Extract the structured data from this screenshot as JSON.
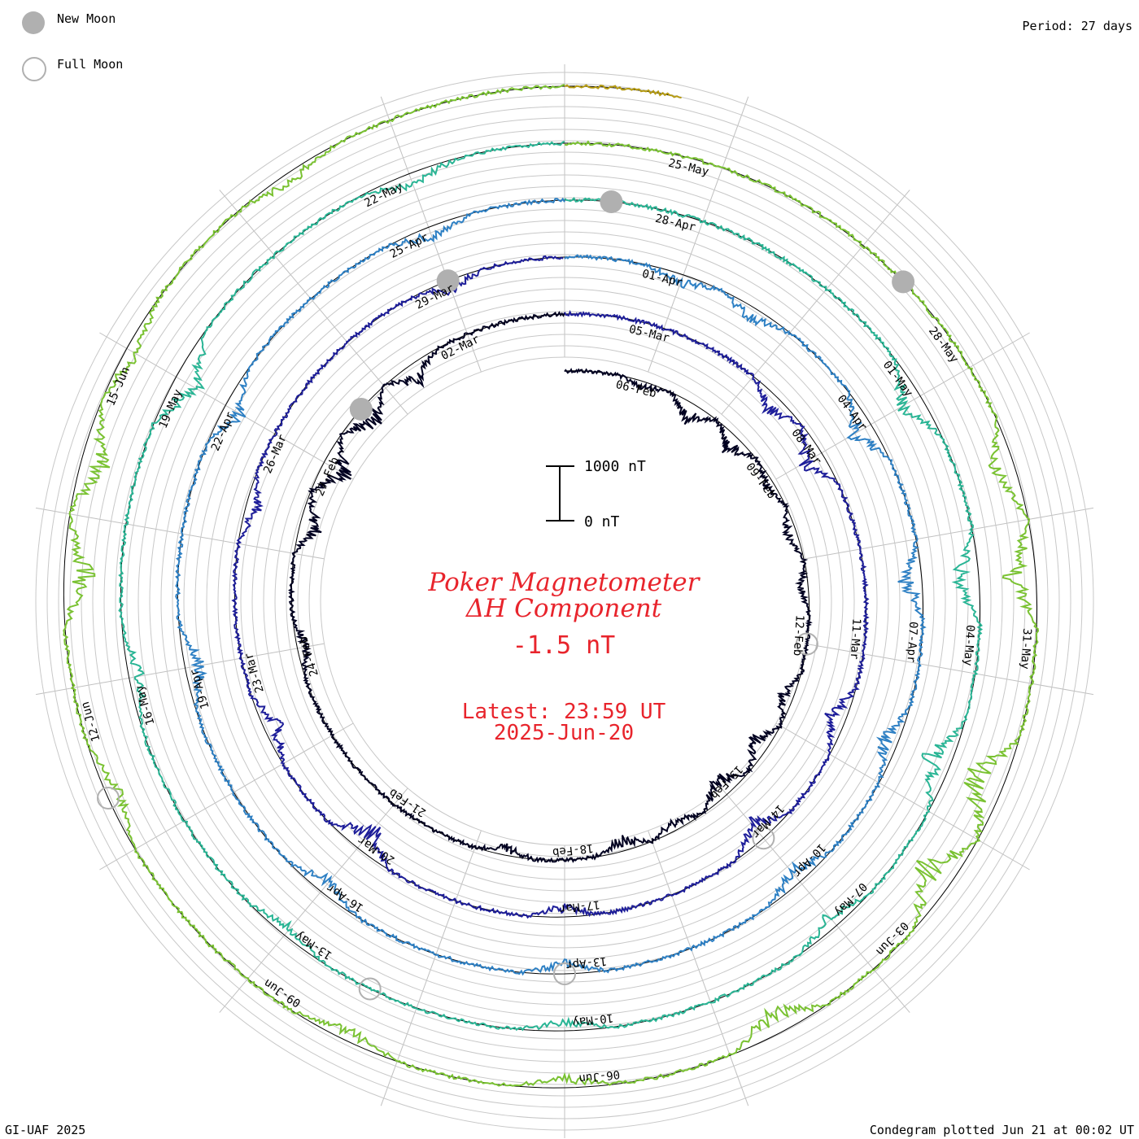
{
  "legend": {
    "new_moon": "New Moon",
    "full_moon": "Full Moon",
    "new_moon_color": "#b0b0b0",
    "full_moon_color": "#b0b0b0"
  },
  "header": {
    "period": "Period: 27 days"
  },
  "footer": {
    "credit": "GI-UAF 2025",
    "plotted": "Condegram plotted Jun 21 at 00:02 UT"
  },
  "center": {
    "title_line1": "Poker Magnetometer",
    "title_line2": "ΔH Component",
    "value": "-1.5 nT",
    "latest": "Latest: 23:59 UT",
    "date": "2025-Jun-20",
    "text_color": "#e8242c"
  },
  "scale_bar": {
    "top_label": "1000 nT",
    "bottom_label": "0 nT",
    "range_nT": [
      0,
      1000
    ]
  },
  "chart_data": {
    "type": "line",
    "layout": "spiral condegram",
    "period_days": 27,
    "start_date": "2025-02-05",
    "end_date": "2025-06-20",
    "quantity": "ΔH (nT)",
    "date_labels": [
      "06-Feb",
      "09-Feb",
      "12-Feb",
      "15-Feb",
      "18-Feb",
      "21-Feb",
      "24-Feb",
      "27-Feb",
      "02-Mar",
      "05-Mar",
      "08-Mar",
      "11-Mar",
      "14-Mar",
      "17-Mar",
      "20-Mar",
      "23-Mar",
      "26-Mar",
      "29-Mar",
      "01-Apr",
      "04-Apr",
      "07-Apr",
      "10-Apr",
      "13-Apr",
      "16-Apr",
      "19-Apr",
      "22-Apr",
      "25-Apr",
      "28-Apr",
      "01-May",
      "04-May",
      "07-May",
      "10-May",
      "13-May",
      "16-May",
      "19-May",
      "22-May",
      "25-May",
      "28-May",
      "31-May",
      "03-Jun",
      "06-Jun",
      "09-Jun",
      "12-Jun",
      "15-Jun"
    ],
    "new_moons": [
      "2025-02-28",
      "2025-03-29",
      "2025-04-27",
      "2025-05-27"
    ],
    "full_moons": [
      "2025-02-12",
      "2025-03-14",
      "2025-04-13",
      "2025-05-12",
      "2025-06-11"
    ],
    "cycle_colors": [
      "#000020",
      "#1e1e9a",
      "#2e80c4",
      "#2ab595",
      "#7ac232",
      "#b59b12",
      "#c43c0c"
    ],
    "disturbances": [
      {
        "date": "2025-02-06",
        "dH": 160
      },
      {
        "date": "2025-02-07",
        "dH": 440
      },
      {
        "date": "2025-02-08",
        "dH": 380
      },
      {
        "date": "2025-02-09",
        "dH": 220
      },
      {
        "date": "2025-02-10",
        "dH": 300
      },
      {
        "date": "2025-02-11",
        "dH": 180
      },
      {
        "date": "2025-02-13",
        "dH": 340
      },
      {
        "date": "2025-02-14",
        "dH": 420
      },
      {
        "date": "2025-02-15",
        "dH": 520
      },
      {
        "date": "2025-02-16",
        "dH": 260
      },
      {
        "date": "2025-02-17",
        "dH": 300
      },
      {
        "date": "2025-02-19",
        "dH": 200
      },
      {
        "date": "2025-02-24",
        "dH": 240
      },
      {
        "date": "2025-02-26",
        "dH": 480
      },
      {
        "date": "2025-02-27",
        "dH": 620
      },
      {
        "date": "2025-02-28",
        "dH": 540
      },
      {
        "date": "2025-03-01",
        "dH": 420
      },
      {
        "date": "2025-03-07",
        "dH": 380
      },
      {
        "date": "2025-03-08",
        "dH": 560
      },
      {
        "date": "2025-03-12",
        "dH": 420
      },
      {
        "date": "2025-03-14",
        "dH": 500
      },
      {
        "date": "2025-03-17",
        "dH": 280
      },
      {
        "date": "2025-03-20",
        "dH": 620
      },
      {
        "date": "2025-03-22",
        "dH": 360
      },
      {
        "date": "2025-03-25",
        "dH": 300
      },
      {
        "date": "2025-03-29",
        "dH": 260
      },
      {
        "date": "2025-04-01",
        "dH": 260
      },
      {
        "date": "2025-04-02",
        "dH": 300
      },
      {
        "date": "2025-04-04",
        "dH": 520
      },
      {
        "date": "2025-04-06",
        "dH": 440
      },
      {
        "date": "2025-04-08",
        "dH": 380
      },
      {
        "date": "2025-04-10",
        "dH": 360
      },
      {
        "date": "2025-04-13",
        "dH": 300
      },
      {
        "date": "2025-04-16",
        "dH": 360
      },
      {
        "date": "2025-04-19",
        "dH": 420
      },
      {
        "date": "2025-04-22",
        "dH": 420
      },
      {
        "date": "2025-04-25",
        "dH": 300
      },
      {
        "date": "2025-05-01",
        "dH": 520
      },
      {
        "date": "2025-05-03",
        "dH": 600
      },
      {
        "date": "2025-05-05",
        "dH": 560
      },
      {
        "date": "2025-05-07",
        "dH": 320
      },
      {
        "date": "2025-05-10",
        "dH": 280
      },
      {
        "date": "2025-05-13",
        "dH": 240
      },
      {
        "date": "2025-05-16",
        "dH": 320
      },
      {
        "date": "2025-05-19",
        "dH": 640
      },
      {
        "date": "2025-05-22",
        "dH": 300
      },
      {
        "date": "2025-05-29",
        "dH": 520
      },
      {
        "date": "2025-05-30",
        "dH": 640
      },
      {
        "date": "2025-06-01",
        "dH": 820
      },
      {
        "date": "2025-06-02",
        "dH": 760
      },
      {
        "date": "2025-06-04",
        "dH": 600
      },
      {
        "date": "2025-06-06",
        "dH": 260
      },
      {
        "date": "2025-06-08",
        "dH": 300
      },
      {
        "date": "2025-06-11",
        "dH": 360
      },
      {
        "date": "2025-06-13",
        "dH": 620
      },
      {
        "date": "2025-06-14",
        "dH": 560
      },
      {
        "date": "2025-06-15",
        "dH": 300
      },
      {
        "date": "2025-06-17",
        "dH": 240
      }
    ]
  }
}
